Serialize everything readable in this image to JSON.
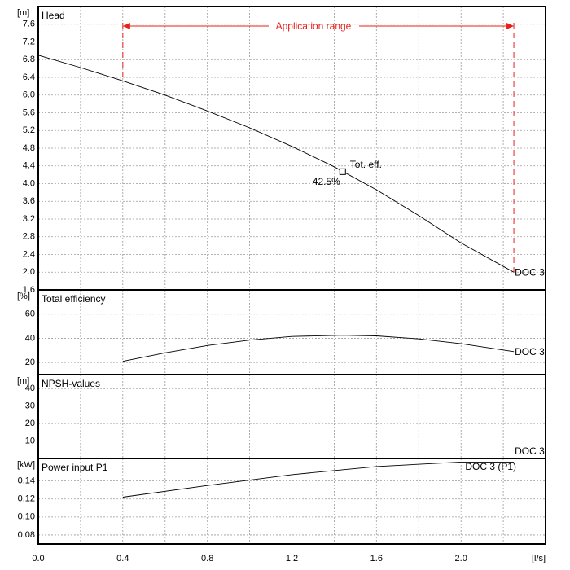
{
  "chart_data": {
    "type": "line",
    "x_unit": "[l/s]",
    "xlim": [
      0,
      2.4
    ],
    "x_ticks": [
      "0.0",
      "0.4",
      "0.8",
      "1.2",
      "1.6",
      "2.0"
    ],
    "application_range": {
      "label": "Application range",
      "x": [
        0.4,
        2.25
      ]
    },
    "panels": [
      {
        "id": "head",
        "title": "Head",
        "unit": "[m]",
        "ylim": [
          1.6,
          8.0
        ],
        "y_ticks": [
          "1.6",
          "2.0",
          "2.4",
          "2.8",
          "3.2",
          "3.6",
          "4.0",
          "4.4",
          "4.8",
          "5.2",
          "5.6",
          "6.0",
          "6.4",
          "6.8",
          "7.2",
          "7.6"
        ],
        "series": [
          {
            "label": "DOC 3",
            "x": [
              0.0,
              0.2,
              0.4,
              0.6,
              0.8,
              1.0,
              1.2,
              1.4,
              1.6,
              1.8,
              2.0,
              2.25
            ],
            "y": [
              6.9,
              6.62,
              6.32,
              6.0,
              5.64,
              5.26,
              4.84,
              4.38,
              3.86,
              3.28,
              2.66,
              2.0
            ]
          }
        ],
        "operating_point": {
          "x": 1.44,
          "y": 4.27,
          "label": "Tot. eff.",
          "value": "42.5%"
        }
      },
      {
        "id": "efficiency",
        "title": "Total efficiency",
        "unit": "[%]",
        "ylim": [
          10,
          80
        ],
        "y_ticks": [
          "20",
          "40",
          "60"
        ],
        "series": [
          {
            "label": "DOC 3",
            "x": [
              0.4,
              0.6,
              0.8,
              1.0,
              1.2,
              1.44,
              1.6,
              1.8,
              2.0,
              2.25
            ],
            "y": [
              21,
              28,
              34,
              38.5,
              41.5,
              42.5,
              42,
              39.5,
              35.5,
              29
            ]
          }
        ]
      },
      {
        "id": "npsh",
        "title": "NPSH-values",
        "unit": "[m]",
        "ylim": [
          0,
          48
        ],
        "y_ticks": [
          "10",
          "20",
          "30",
          "40"
        ],
        "series": [
          {
            "label": "DOC 3",
            "x": [],
            "y": []
          }
        ]
      },
      {
        "id": "power",
        "title": "Power input P1",
        "unit": "[kW]",
        "ylim": [
          0.07,
          0.165
        ],
        "y_ticks": [
          "0.08",
          "0.10",
          "0.12",
          "0.14"
        ],
        "series": [
          {
            "label": "DOC 3 (P1)",
            "x": [
              0.4,
              0.8,
              1.2,
              1.6,
              2.0,
              2.25
            ],
            "y": [
              0.122,
              0.135,
              0.147,
              0.156,
              0.161,
              0.161
            ]
          }
        ]
      }
    ]
  }
}
